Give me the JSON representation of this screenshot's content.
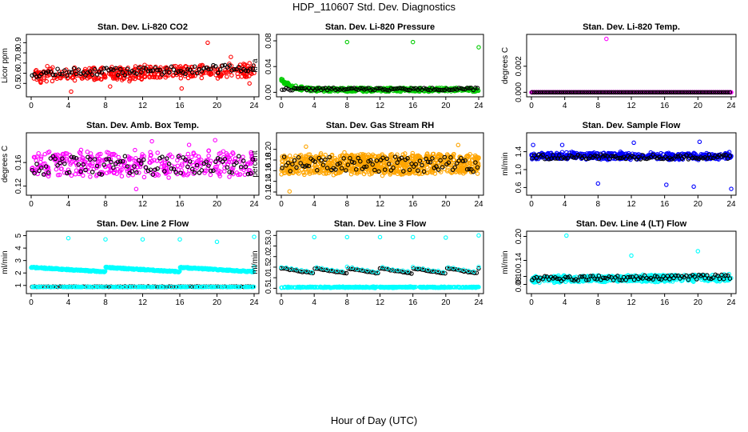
{
  "title": "HDP_110607  Std. Dev. Diagnostics",
  "xlabel": "Hour of Day (UTC)",
  "chart_data": [
    {
      "type": "scatter",
      "title": "Stan. Dev. Li-820 CO2",
      "ylabel": "Licor ppm",
      "xlim": [
        0,
        24
      ],
      "ylim": [
        0.4,
        0.95
      ],
      "xticks": [
        0,
        4,
        8,
        12,
        16,
        20,
        24
      ],
      "xtick_labels": [
        "0",
        "4",
        "8",
        "12",
        "16",
        "20",
        "24"
      ],
      "yticks": [
        0.5,
        0.6,
        0.7,
        0.8,
        0.9
      ],
      "ytick_labels": [
        "0.5",
        "0.6",
        "0.7",
        "0.8",
        "0.9"
      ],
      "series": [
        {
          "color": "#ff0000",
          "pattern": {
            "kind": "band",
            "n": 380,
            "base": 0.58,
            "slope": 0.002,
            "spread": 0.06,
            "noise": 0.03,
            "seed": 11
          },
          "outliers": [
            [
              4.3,
              0.42
            ],
            [
              19,
              0.9
            ],
            [
              8.5,
              0.47
            ],
            [
              16.2,
              0.45
            ],
            [
              23.5,
              0.5
            ],
            [
              21.5,
              0.76
            ]
          ]
        },
        {
          "color": "#000000",
          "pattern": {
            "kind": "hourly",
            "step": 0.25,
            "base": 0.6,
            "slope": 0.002,
            "spread": 0.04,
            "seed": 12
          }
        }
      ]
    },
    {
      "type": "scatter",
      "title": "Stan. Dev. Li-820 Pressure",
      "ylabel": "kPa",
      "xlim": [
        0,
        24
      ],
      "ylim": [
        -0.002,
        0.085
      ],
      "xticks": [
        0,
        4,
        8,
        12,
        16,
        20,
        24
      ],
      "xtick_labels": [
        "0",
        "4",
        "8",
        "12",
        "16",
        "20",
        "24"
      ],
      "yticks": [
        0,
        0.04,
        0.08
      ],
      "ytick_labels": [
        "0.00",
        "0.04",
        "0.08"
      ],
      "series": [
        {
          "color": "#00cc00",
          "pattern": {
            "kind": "decay",
            "n": 420,
            "start": 0.02,
            "tau": 1.2,
            "floor": 0.004,
            "spread": 0.003,
            "seed": 21
          },
          "outliers": [
            [
              8,
              0.078
            ],
            [
              16,
              0.078
            ],
            [
              24,
              0.07
            ]
          ]
        },
        {
          "color": "#000000",
          "pattern": {
            "kind": "hourly",
            "step": 0.25,
            "base": 0.005,
            "slope": 0,
            "spread": 0.002,
            "seed": 22
          }
        }
      ]
    },
    {
      "type": "scatter",
      "title": "Stan. Dev. Li-820 Temp.",
      "ylabel": "degrees C",
      "xlim": [
        0,
        24
      ],
      "ylim": [
        -0.0001,
        0.0042
      ],
      "xticks": [
        0,
        4,
        8,
        12,
        16,
        20,
        24
      ],
      "xtick_labels": [
        "0",
        "4",
        "8",
        "12",
        "16",
        "20",
        "24"
      ],
      "yticks": [
        0,
        0.002
      ],
      "ytick_labels": [
        "0.000",
        "0.002"
      ],
      "series": [
        {
          "color": "#ff00ff",
          "pattern": {
            "kind": "flat",
            "n": 300,
            "value": 0
          },
          "outliers": [
            [
              9,
              0.0041
            ]
          ]
        },
        {
          "color": "#000000",
          "pattern": {
            "kind": "hourly",
            "step": 0.25,
            "base": 0,
            "slope": 0,
            "spread": 0,
            "seed": 32
          }
        }
      ]
    },
    {
      "type": "scatter",
      "title": "Stan. Dev. Amb. Box Temp.",
      "ylabel": "degrees C",
      "xlim": [
        0,
        24
      ],
      "ylim": [
        0.11,
        0.205
      ],
      "xticks": [
        0,
        4,
        8,
        12,
        16,
        20,
        24
      ],
      "xtick_labels": [
        "0",
        "4",
        "8",
        "12",
        "16",
        "20",
        "24"
      ],
      "yticks": [
        0.12,
        0.16
      ],
      "ytick_labels": [
        "0.12",
        "0.16"
      ],
      "series": [
        {
          "color": "#ff00ff",
          "pattern": {
            "kind": "band",
            "n": 380,
            "base": 0.157,
            "slope": 0,
            "spread": 0.02,
            "noise": 0.008,
            "seed": 41
          },
          "outliers": [
            [
              11.3,
              0.115
            ],
            [
              13,
              0.196
            ],
            [
              17,
              0.19
            ],
            [
              19.8,
              0.198
            ]
          ]
        },
        {
          "color": "#000000",
          "pattern": {
            "kind": "hourly",
            "step": 0.25,
            "base": 0.155,
            "slope": 0,
            "spread": 0.016,
            "seed": 42
          }
        }
      ]
    },
    {
      "type": "scatter",
      "title": "Stan. Dev. Gas Stream RH",
      "ylabel": "percent",
      "xlim": [
        0,
        24
      ],
      "ylim": [
        0.12,
        0.225
      ],
      "xticks": [
        0,
        4,
        8,
        12,
        16,
        20,
        24
      ],
      "xtick_labels": [
        "0",
        "4",
        "8",
        "12",
        "16",
        "20",
        "24"
      ],
      "yticks": [
        0.12,
        0.14,
        0.16,
        0.18,
        0.2
      ],
      "ytick_labels": [
        "0.12",
        "0.14",
        "0.16",
        "0.18",
        "0.20"
      ],
      "series": [
        {
          "color": "#ffa500",
          "pattern": {
            "kind": "band",
            "n": 900,
            "base": 0.172,
            "slope": 0,
            "spread": 0.018,
            "noise": 0.005,
            "seed": 51
          },
          "outliers": [
            [
              1,
              0.121
            ],
            [
              3,
              0.205
            ],
            [
              21.5,
              0.208
            ]
          ]
        },
        {
          "color": "#000000",
          "pattern": {
            "kind": "hourly",
            "step": 0.25,
            "base": 0.172,
            "slope": 0,
            "spread": 0.014,
            "seed": 52
          }
        }
      ]
    },
    {
      "type": "scatter",
      "title": "Stan. Dev. Sample Flow",
      "ylabel": "ml/min",
      "xlim": [
        0,
        24
      ],
      "ylim": [
        0.5,
        1.75
      ],
      "xticks": [
        0,
        4,
        8,
        12,
        16,
        20,
        24
      ],
      "xtick_labels": [
        "0",
        "4",
        "8",
        "12",
        "16",
        "20",
        "24"
      ],
      "yticks": [
        0.6,
        1.0,
        1.4
      ],
      "ytick_labels": [
        "0.6",
        "1.0",
        "1.4"
      ],
      "series": [
        {
          "color": "#0000ff",
          "pattern": {
            "kind": "band",
            "n": 520,
            "base": 1.3,
            "slope": 0,
            "spread": 0.06,
            "noise": 0.05,
            "seed": 61
          },
          "outliers": [
            [
              0.2,
              1.55
            ],
            [
              8,
              0.69
            ],
            [
              12.3,
              1.6
            ],
            [
              16.2,
              0.66
            ],
            [
              19.5,
              0.62
            ],
            [
              20.2,
              1.62
            ],
            [
              24,
              0.57
            ],
            [
              3.7,
              1.55
            ]
          ]
        },
        {
          "color": "#000000",
          "pattern": {
            "kind": "hourly",
            "step": 0.25,
            "base": 1.28,
            "slope": 0,
            "spread": 0.05,
            "seed": 62
          }
        }
      ]
    },
    {
      "type": "scatter",
      "title": "Stan. Dev. Line 2 Flow",
      "ylabel": "ml/min",
      "xlim": [
        0,
        24
      ],
      "ylim": [
        0.6,
        5.1
      ],
      "xticks": [
        0,
        4,
        8,
        12,
        16,
        20,
        24
      ],
      "xtick_labels": [
        "0",
        "4",
        "8",
        "12",
        "16",
        "20",
        "24"
      ],
      "yticks": [
        1,
        2,
        3,
        4,
        5
      ],
      "ytick_labels": [
        "1",
        "2",
        "3",
        "4",
        "5"
      ],
      "series": [
        {
          "color": "#00ffff",
          "pattern": {
            "kind": "sawtooth",
            "n": 480,
            "period": 8,
            "start": 2.45,
            "end": 2.1,
            "spread": 0.05,
            "seed": 71
          },
          "outliers": [
            [
              4,
              4.8
            ],
            [
              8,
              4.7
            ],
            [
              12,
              4.7
            ],
            [
              16,
              4.7
            ],
            [
              20,
              4.5
            ],
            [
              24,
              4.9
            ]
          ]
        },
        {
          "color": "#000000",
          "pattern": {
            "kind": "hourly",
            "step": 0.25,
            "base": 0.9,
            "slope": 0,
            "spread": 0.02,
            "seed": 72
          }
        },
        {
          "color": "#00ffff",
          "pattern": {
            "kind": "band",
            "n": 200,
            "base": 0.88,
            "slope": 0,
            "spread": 0.01,
            "noise": 0.01,
            "seed": 73
          }
        }
      ]
    },
    {
      "type": "scatter",
      "title": "Stan. Dev. Line 3 Flow",
      "ylabel": "ml/min",
      "xlim": [
        0,
        24
      ],
      "ylim": [
        0.4,
        3.05
      ],
      "xticks": [
        0,
        4,
        8,
        12,
        16,
        20,
        24
      ],
      "xtick_labels": [
        "0",
        "4",
        "8",
        "12",
        "16",
        "20",
        "24"
      ],
      "yticks": [
        0.5,
        1.0,
        1.5,
        2.0,
        2.5,
        3.0
      ],
      "ytick_labels": [
        "0.5",
        "1.0",
        "1.5",
        "2.0",
        "2.5",
        "3.0"
      ],
      "series": [
        {
          "color": "#00ffff",
          "pattern": {
            "kind": "band",
            "n": 420,
            "base": 0.55,
            "slope": 0,
            "spread": 0.02,
            "noise": 0.02,
            "seed": 81
          },
          "outliers": [
            [
              4,
              2.92
            ],
            [
              8,
              2.92
            ],
            [
              12,
              2.92
            ],
            [
              16,
              2.92
            ],
            [
              20,
              2.9
            ],
            [
              24,
              3.0
            ]
          ]
        },
        {
          "color": "#000000",
          "pattern": {
            "kind": "sawtooth",
            "n": 95,
            "period": 4,
            "start": 1.45,
            "end": 1.2,
            "spread": 0.02,
            "seed": 82
          }
        },
        {
          "color": "#00ffff",
          "pattern": {
            "kind": "sawtooth",
            "n": 40,
            "period": 4,
            "start": 1.5,
            "end": 1.25,
            "spread": 0.02,
            "seed": 83
          }
        }
      ]
    },
    {
      "type": "scatter",
      "title": "Stan. Dev. Line 4 (LT) Flow",
      "ylabel": "ml/min",
      "xlim": [
        0,
        24
      ],
      "ylim": [
        0.065,
        0.205
      ],
      "xticks": [
        0,
        4,
        8,
        12,
        16,
        20,
        24
      ],
      "xtick_labels": [
        "0",
        "4",
        "8",
        "12",
        "16",
        "20",
        "24"
      ],
      "yticks": [
        0.08,
        0.1,
        0.14,
        0.2
      ],
      "ytick_labels": [
        "0.08",
        "0.10",
        "0.14",
        "0.20"
      ],
      "series": [
        {
          "color": "#00ffff",
          "pattern": {
            "kind": "band",
            "n": 480,
            "base": 0.093,
            "slope": 0.00015,
            "spread": 0.008,
            "noise": 0.004,
            "seed": 91
          },
          "outliers": [
            [
              4.2,
              0.202
            ],
            [
              12,
              0.152
            ],
            [
              20,
              0.163
            ]
          ]
        },
        {
          "color": "#000000",
          "pattern": {
            "kind": "hourly",
            "step": 0.25,
            "base": 0.094,
            "slope": 0.0002,
            "spread": 0.006,
            "seed": 92
          }
        }
      ]
    }
  ]
}
